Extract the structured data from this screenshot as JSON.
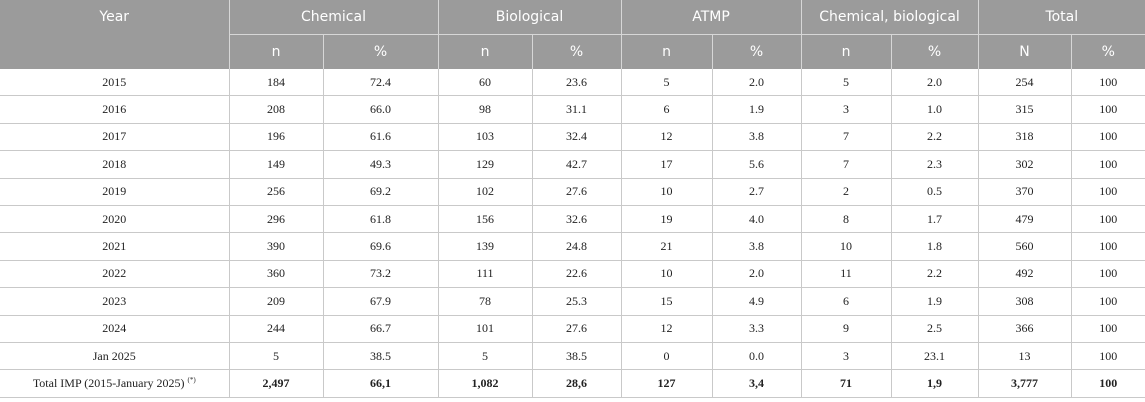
{
  "headers": {
    "year": "Year",
    "groups": [
      "Chemical",
      "Biological",
      "ATMP",
      "Chemical, biological",
      "Total"
    ],
    "sub": [
      "n",
      "%",
      "n",
      "%",
      "n",
      "%",
      "n",
      "%",
      "N",
      "%"
    ]
  },
  "rows": [
    [
      "2015",
      "184",
      "72.4",
      "60",
      "23.6",
      "5",
      "2.0",
      "5",
      "2.0",
      "254",
      "100"
    ],
    [
      "2016",
      "208",
      "66.0",
      "98",
      "31.1",
      "6",
      "1.9",
      "3",
      "1.0",
      "315",
      "100"
    ],
    [
      "2017",
      "196",
      "61.6",
      "103",
      "32.4",
      "12",
      "3.8",
      "7",
      "2.2",
      "318",
      "100"
    ],
    [
      "2018",
      "149",
      "49.3",
      "129",
      "42.7",
      "17",
      "5.6",
      "7",
      "2.3",
      "302",
      "100"
    ],
    [
      "2019",
      "256",
      "69.2",
      "102",
      "27.6",
      "10",
      "2.7",
      "2",
      "0.5",
      "370",
      "100"
    ],
    [
      "2020",
      "296",
      "61.8",
      "156",
      "32.6",
      "19",
      "4.0",
      "8",
      "1.7",
      "479",
      "100"
    ],
    [
      "2021",
      "390",
      "69.6",
      "139",
      "24.8",
      "21",
      "3.8",
      "10",
      "1.8",
      "560",
      "100"
    ],
    [
      "2022",
      "360",
      "73.2",
      "111",
      "22.6",
      "10",
      "2.0",
      "11",
      "2.2",
      "492",
      "100"
    ],
    [
      "2023",
      "209",
      "67.9",
      "78",
      "25.3",
      "15",
      "4.9",
      "6",
      "1.9",
      "308",
      "100"
    ],
    [
      "2024",
      "244",
      "66.7",
      "101",
      "27.6",
      "12",
      "3.3",
      "9",
      "2.5",
      "366",
      "100"
    ],
    [
      "Jan 2025",
      "5",
      "38.5",
      "5",
      "38.5",
      "0",
      "0.0",
      "3",
      "23.1",
      "13",
      "100"
    ]
  ],
  "total": {
    "label": "Total IMP (2015-January 2025)",
    "note": "(*)",
    "values": [
      "2,497",
      "66,1",
      "1,082",
      "28,6",
      "127",
      "3,4",
      "71",
      "1,9",
      "3,777",
      "100"
    ]
  }
}
